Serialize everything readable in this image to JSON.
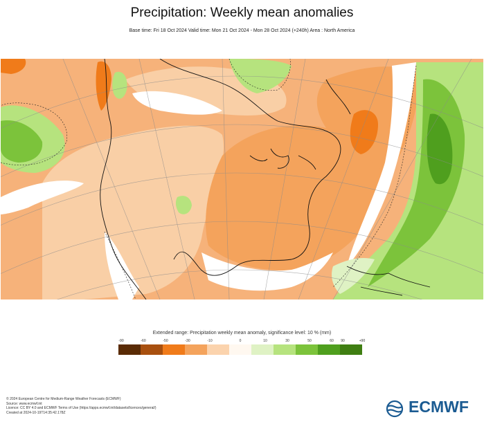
{
  "title": "Precipitation: Weekly mean anomalies",
  "subtitle": "Base time: Fri 18 Oct 2024 Valid time: Mon 21 Oct 2024 - Mon 28 Oct 2024 (+240h) Area : North America",
  "map": {
    "region": "North America",
    "projection": "polar stereographic",
    "colors": {
      "ocean_dry": "#f4a35c",
      "land_dry_light": "#f9cfa6",
      "dry_strong": "#f07b1a",
      "wet_light": "#d6eeb0",
      "wet_mid": "#a8dc72",
      "wet_strong": "#7cc33b",
      "wet_very": "#4a9a1e",
      "neutral": "#ffffff"
    }
  },
  "legend": {
    "title": "Extended range: Precipitation weekly mean anomaly, significance level: 10 % (mm)",
    "ticks": [
      "-90",
      "-60",
      "-50",
      "-30",
      "-10",
      "0",
      "10",
      "30",
      "50",
      "60",
      "90",
      "+90"
    ],
    "colors": [
      "#5a2b05",
      "#a8500f",
      "#f07b1a",
      "#f4a35c",
      "#fbd3ad",
      "#fff8f0",
      "#dff2c4",
      "#b6e37e",
      "#7cc33b",
      "#4f9f1e",
      "#3f7e12"
    ]
  },
  "footer": {
    "lines": [
      "© 2024 European Centre for Medium-Range Weather Forecasts (ECMWF)",
      "Source: www.ecmwf.int",
      "Licence: CC BY 4.0 and ECMWF Terms of Use (https://apps.ecmwf.int/datasets/licences/general/)",
      "Created at 2024-10-19T14:35:42.178Z"
    ]
  },
  "logo": {
    "text": "ECMWF",
    "color": "#1b5b92"
  }
}
